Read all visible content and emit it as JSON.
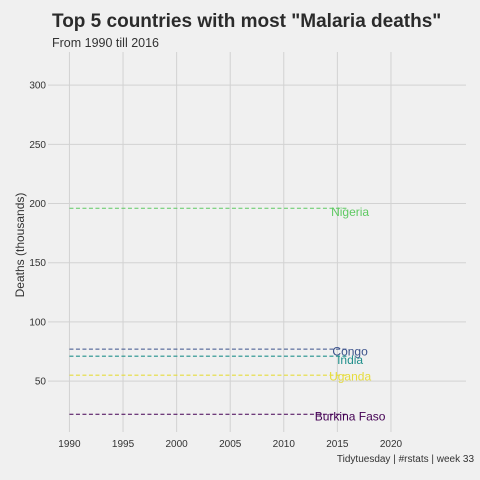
{
  "chart_data": {
    "type": "line",
    "title": "Top 5 countries with most \"Malaria deaths\"",
    "subtitle": "From 1990 till 2016",
    "caption": "Tidytuesday | #rstats | week 33",
    "xlabel": "",
    "ylabel": "Deaths (thousands)",
    "xlim": [
      1988,
      2027
    ],
    "ylim": [
      7,
      328
    ],
    "x_ticks": [
      1990,
      1995,
      2000,
      2005,
      2010,
      2015,
      2020
    ],
    "y_ticks": [
      50,
      100,
      150,
      200,
      250,
      300
    ],
    "grid": true,
    "legend": "direct labels at line ends",
    "series": [
      {
        "name": "Nigeria",
        "color": "#5ec962",
        "x": [
          1990,
          2016
        ],
        "y": [
          196,
          196
        ],
        "label_y": 193
      },
      {
        "name": "Congo",
        "color": "#3b528b",
        "x": [
          1990,
          2016
        ],
        "y": [
          77,
          77
        ],
        "label_y": 75
      },
      {
        "name": "India",
        "color": "#21908c",
        "x": [
          1990,
          2016
        ],
        "y": [
          71,
          71
        ],
        "label_y": 68
      },
      {
        "name": "Uganda",
        "color": "#e6dc3c",
        "x": [
          1990,
          2016
        ],
        "y": [
          55,
          55
        ],
        "label_y": 54
      },
      {
        "name": "Burkina Faso",
        "color": "#440154",
        "x": [
          1990,
          2016
        ],
        "y": [
          22,
          22
        ],
        "label_y": 20
      }
    ]
  }
}
